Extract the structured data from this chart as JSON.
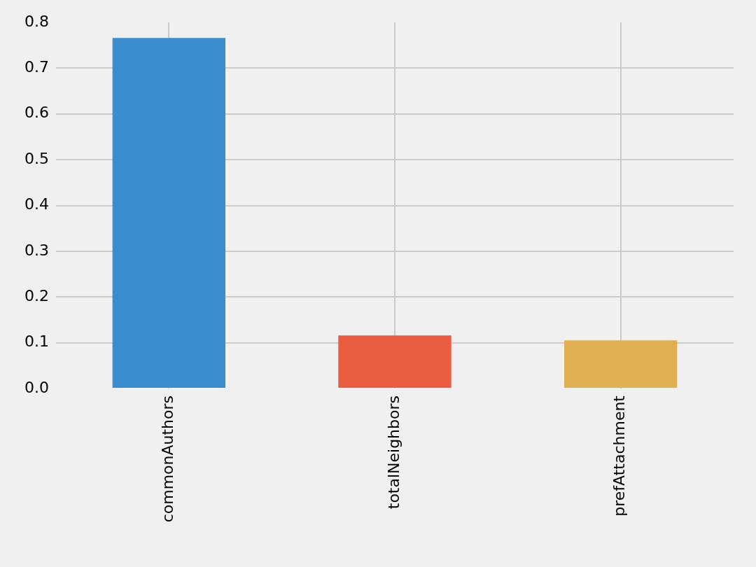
{
  "chart_data": {
    "type": "bar",
    "categories": [
      "commonAuthors",
      "totalNeighbors",
      "prefAttachment"
    ],
    "values": [
      0.766,
      0.116,
      0.105
    ],
    "colors": [
      "#3a8ecf",
      "#e95c40",
      "#dfaf52"
    ],
    "ylim": [
      0,
      0.8
    ],
    "yticks": [
      {
        "value": 0,
        "label": "0.0"
      },
      0.1,
      0.2,
      0.3,
      0.4,
      0.5,
      0.6,
      0.7,
      0.8
    ],
    "grid": true
  }
}
